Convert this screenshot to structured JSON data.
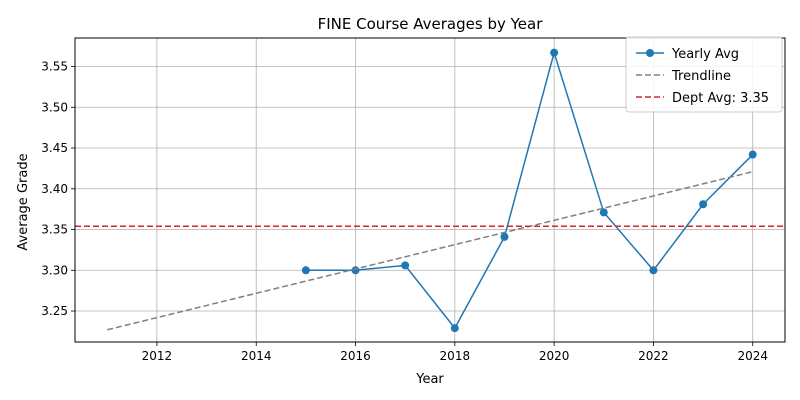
{
  "chart_data": {
    "type": "line",
    "title": "FINE Course Averages by Year",
    "xlabel": "Year",
    "ylabel": "Average Grade",
    "xlim": [
      2010.35,
      2024.65
    ],
    "ylim": [
      3.212,
      3.585
    ],
    "xticks": [
      2012,
      2014,
      2016,
      2018,
      2020,
      2022,
      2024
    ],
    "yticks": [
      3.25,
      3.3,
      3.35,
      3.4,
      3.45,
      3.5,
      3.55
    ],
    "grid": true,
    "legend_position": "top-right",
    "series": [
      {
        "name": "Yearly Avg",
        "style": "line-marker",
        "color": "#1f77b4",
        "x": [
          2015,
          2016,
          2017,
          2018,
          2019,
          2020,
          2021,
          2022,
          2023,
          2024
        ],
        "y": [
          3.3,
          3.3,
          3.306,
          3.229,
          3.341,
          3.567,
          3.371,
          3.3,
          3.381,
          3.442
        ]
      },
      {
        "name": "Trendline",
        "style": "dashed",
        "color": "#808080",
        "x": [
          2011,
          2024
        ],
        "y": [
          3.227,
          3.421
        ]
      },
      {
        "name": "Dept Avg: 3.35",
        "style": "hline-dashed",
        "color": "#d62728",
        "y": 3.354
      }
    ]
  }
}
